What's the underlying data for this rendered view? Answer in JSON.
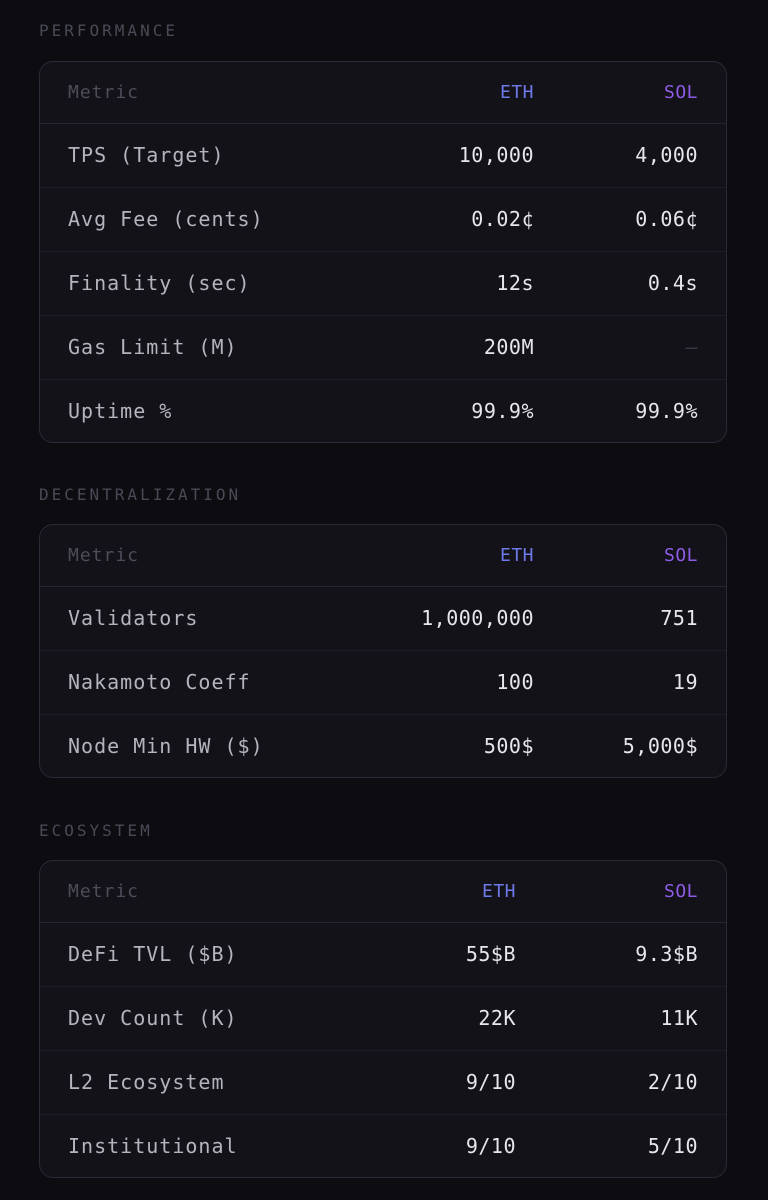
{
  "colors": {
    "background": "#0c0c11",
    "card": "#121218",
    "border": "#2a2a36",
    "eth_accent": "#6f79e8",
    "sol_accent": "#8f5ce6"
  },
  "sections": [
    {
      "title": "PERFORMANCE",
      "header": {
        "metric": "Metric",
        "eth": "ETH",
        "sol": "SOL"
      },
      "rows": [
        {
          "metric": "TPS (Target)",
          "eth": "10,000",
          "sol": "4,000"
        },
        {
          "metric": "Avg Fee (cents)",
          "eth": "0.02¢",
          "sol": "0.06¢"
        },
        {
          "metric": "Finality (sec)",
          "eth": "12s",
          "sol": "0.4s"
        },
        {
          "metric": "Gas Limit (M)",
          "eth": "200M",
          "sol": "—"
        },
        {
          "metric": "Uptime %",
          "eth": "99.9%",
          "sol": "99.9%"
        }
      ]
    },
    {
      "title": "DECENTRALIZATION",
      "header": {
        "metric": "Metric",
        "eth": "ETH",
        "sol": "SOL"
      },
      "rows": [
        {
          "metric": "Validators",
          "eth": "1,000,000",
          "sol": "751"
        },
        {
          "metric": "Nakamoto Coeff",
          "eth": "100",
          "sol": "19"
        },
        {
          "metric": "Node Min HW ($)",
          "eth": "500$",
          "sol": "5,000$"
        }
      ]
    },
    {
      "title": "ECOSYSTEM",
      "header": {
        "metric": "Metric",
        "eth": "ETH",
        "sol": "SOL"
      },
      "rows": [
        {
          "metric": "DeFi TVL ($B)",
          "eth": "55$B",
          "sol": "9.3$B"
        },
        {
          "metric": "Dev Count (K)",
          "eth": "22K",
          "sol": "11K"
        },
        {
          "metric": "L2 Ecosystem",
          "eth": "9/10",
          "sol": "2/10"
        },
        {
          "metric": "Institutional",
          "eth": "9/10",
          "sol": "5/10"
        }
      ]
    }
  ]
}
